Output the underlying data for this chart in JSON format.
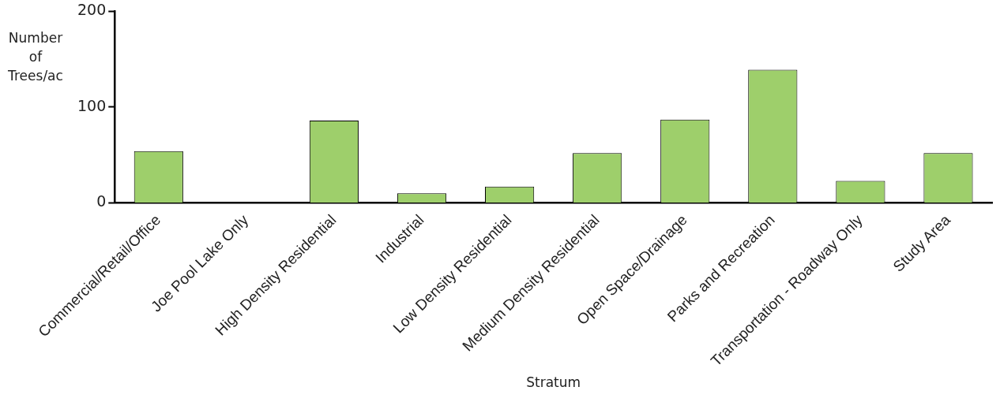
{
  "chart_data": {
    "type": "bar",
    "xlabel": "Stratum",
    "ylabel": "Number of Trees/ac",
    "categories": [
      "Commercial/Retail/Office",
      "Joe Pool Lake Only",
      "High Density Residential",
      "Industrial",
      "Low Density Residential",
      "Medium Density Residential",
      "Open Space/Drainage",
      "Parks and Recreation",
      "Transportation - Roadway Only",
      "Study Area"
    ],
    "values": [
      54,
      0,
      86,
      10,
      17,
      52,
      87,
      139,
      23,
      52
    ],
    "color": "#9ecf6b",
    "ylim": [
      0,
      200
    ],
    "yticks": [
      0,
      100,
      200
    ],
    "grid": false,
    "legend": false
  }
}
